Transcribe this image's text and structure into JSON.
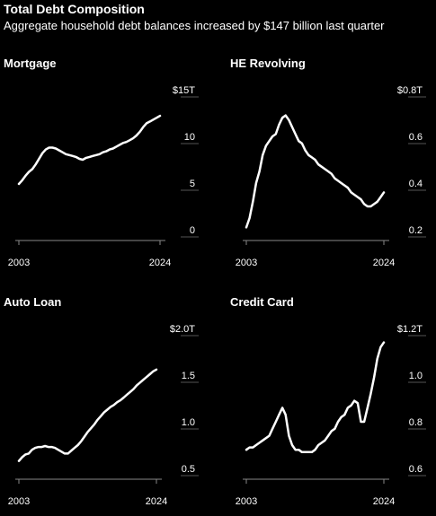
{
  "header": {
    "title": "Total Debt Composition",
    "subtitle": "Aggregate household debt balances increased by $147 billion last quarter"
  },
  "chart_data": [
    {
      "type": "line",
      "title": "Mortgage",
      "unit_label": "$15T",
      "xlim": [
        2003,
        2024
      ],
      "x_ticks": [
        2003,
        2024
      ],
      "x_tick_labels": [
        "2003",
        "2024"
      ],
      "ylim": [
        0,
        15
      ],
      "y_ticks": [
        0,
        5,
        10,
        15
      ],
      "y_tick_labels": [
        "0",
        "5",
        "10",
        "$15T"
      ],
      "series": [
        {
          "x": [
            2003.0,
            2003.5,
            2004.0,
            2004.5,
            2005.0,
            2005.5,
            2006.0,
            2006.5,
            2007.0,
            2007.5,
            2008.0,
            2008.5,
            2009.0,
            2009.5,
            2010.0,
            2010.5,
            2011.0,
            2011.5,
            2012.0,
            2012.5,
            2013.0,
            2013.5,
            2014.0,
            2014.5,
            2015.0,
            2015.5,
            2016.0,
            2016.5,
            2017.0,
            2017.5,
            2018.0,
            2018.5,
            2019.0,
            2019.5,
            2020.0,
            2020.5,
            2021.0,
            2021.5,
            2022.0,
            2022.5,
            2023.0,
            2023.5,
            2024.0
          ],
          "values": [
            4.9,
            5.3,
            5.8,
            6.2,
            6.5,
            7.0,
            7.6,
            8.2,
            8.6,
            8.8,
            8.8,
            8.7,
            8.5,
            8.3,
            8.1,
            8.0,
            7.9,
            7.8,
            7.6,
            7.5,
            7.7,
            7.8,
            7.9,
            8.0,
            8.1,
            8.3,
            8.4,
            8.6,
            8.7,
            8.9,
            9.1,
            9.3,
            9.4,
            9.6,
            9.8,
            10.1,
            10.5,
            11.0,
            11.4,
            11.6,
            11.8,
            12.0,
            12.2
          ]
        }
      ]
    },
    {
      "type": "line",
      "title": "HE Revolving",
      "unit_label": "$0.8T",
      "xlim": [
        2003,
        2024
      ],
      "x_ticks": [
        2003,
        2024
      ],
      "x_tick_labels": [
        "2003",
        "2024"
      ],
      "ylim": [
        0.2,
        0.8
      ],
      "y_ticks": [
        0.2,
        0.4,
        0.6,
        0.8
      ],
      "y_tick_labels": [
        "0.2",
        "0.4",
        "0.6",
        "$0.8T"
      ],
      "series": [
        {
          "x": [
            2003.0,
            2003.5,
            2004.0,
            2004.5,
            2005.0,
            2005.5,
            2006.0,
            2006.5,
            2007.0,
            2007.5,
            2008.0,
            2008.5,
            2009.0,
            2009.5,
            2010.0,
            2010.5,
            2011.0,
            2011.5,
            2012.0,
            2012.5,
            2013.0,
            2013.5,
            2014.0,
            2014.5,
            2015.0,
            2015.5,
            2016.0,
            2016.5,
            2017.0,
            2017.5,
            2018.0,
            2018.5,
            2019.0,
            2019.5,
            2020.0,
            2020.5,
            2021.0,
            2021.5,
            2022.0,
            2022.5,
            2023.0,
            2023.5,
            2024.0
          ],
          "values": [
            0.21,
            0.25,
            0.32,
            0.4,
            0.45,
            0.52,
            0.56,
            0.58,
            0.6,
            0.61,
            0.65,
            0.68,
            0.69,
            0.67,
            0.64,
            0.61,
            0.58,
            0.57,
            0.54,
            0.52,
            0.51,
            0.5,
            0.48,
            0.47,
            0.46,
            0.45,
            0.44,
            0.42,
            0.41,
            0.4,
            0.39,
            0.38,
            0.36,
            0.35,
            0.34,
            0.33,
            0.31,
            0.3,
            0.3,
            0.31,
            0.32,
            0.34,
            0.36
          ]
        }
      ]
    },
    {
      "type": "line",
      "title": "Auto Loan",
      "unit_label": "$2.0T",
      "xlim": [
        2003,
        2024
      ],
      "x_ticks": [
        2003,
        2024
      ],
      "x_tick_labels": [
        "2003",
        "2024"
      ],
      "ylim": [
        0.5,
        2.0
      ],
      "y_ticks": [
        0.5,
        1.0,
        1.5,
        2.0
      ],
      "y_tick_labels": [
        "0.5",
        "1.0",
        "1.5",
        "$2.0T"
      ],
      "series": [
        {
          "x": [
            2003.0,
            2003.5,
            2004.0,
            2004.5,
            2005.0,
            2005.5,
            2006.0,
            2006.5,
            2007.0,
            2007.5,
            2008.0,
            2008.5,
            2009.0,
            2009.5,
            2010.0,
            2010.5,
            2011.0,
            2011.5,
            2012.0,
            2012.5,
            2013.0,
            2013.5,
            2014.0,
            2014.5,
            2015.0,
            2015.5,
            2016.0,
            2016.5,
            2017.0,
            2017.5,
            2018.0,
            2018.5,
            2019.0,
            2019.5,
            2020.0,
            2020.5,
            2021.0,
            2021.5,
            2022.0,
            2022.5,
            2023.0,
            2023.5,
            2024.0
          ],
          "values": [
            0.58,
            0.62,
            0.65,
            0.66,
            0.7,
            0.72,
            0.73,
            0.73,
            0.74,
            0.73,
            0.73,
            0.72,
            0.7,
            0.68,
            0.66,
            0.66,
            0.69,
            0.72,
            0.75,
            0.79,
            0.84,
            0.89,
            0.93,
            0.97,
            1.02,
            1.06,
            1.1,
            1.13,
            1.16,
            1.18,
            1.21,
            1.23,
            1.26,
            1.29,
            1.32,
            1.35,
            1.39,
            1.42,
            1.45,
            1.48,
            1.51,
            1.54,
            1.56
          ]
        }
      ]
    },
    {
      "type": "line",
      "title": "Credit Card",
      "unit_label": "$1.2T",
      "xlim": [
        2003,
        2024
      ],
      "x_ticks": [
        2003,
        2024
      ],
      "x_tick_labels": [
        "2003",
        "2024"
      ],
      "ylim": [
        0.6,
        1.2
      ],
      "y_ticks": [
        0.6,
        0.8,
        1.0,
        1.2
      ],
      "y_tick_labels": [
        "0.6",
        "0.8",
        "1.0",
        "$1.2T"
      ],
      "series": [
        {
          "x": [
            2003.0,
            2003.5,
            2004.0,
            2004.5,
            2005.0,
            2005.5,
            2006.0,
            2006.5,
            2007.0,
            2007.5,
            2008.0,
            2008.5,
            2009.0,
            2009.5,
            2010.0,
            2010.5,
            2011.0,
            2011.5,
            2012.0,
            2012.5,
            2013.0,
            2013.5,
            2014.0,
            2014.5,
            2015.0,
            2015.5,
            2016.0,
            2016.5,
            2017.0,
            2017.5,
            2018.0,
            2018.5,
            2019.0,
            2019.5,
            2020.0,
            2020.5,
            2021.0,
            2021.5,
            2022.0,
            2022.5,
            2023.0,
            2023.5,
            2024.0
          ],
          "values": [
            0.68,
            0.69,
            0.69,
            0.7,
            0.71,
            0.72,
            0.73,
            0.74,
            0.77,
            0.8,
            0.83,
            0.86,
            0.83,
            0.74,
            0.7,
            0.68,
            0.68,
            0.67,
            0.67,
            0.67,
            0.67,
            0.68,
            0.7,
            0.71,
            0.72,
            0.74,
            0.76,
            0.77,
            0.8,
            0.82,
            0.83,
            0.86,
            0.87,
            0.89,
            0.88,
            0.8,
            0.8,
            0.86,
            0.92,
            0.99,
            1.07,
            1.12,
            1.14
          ]
        }
      ]
    }
  ]
}
